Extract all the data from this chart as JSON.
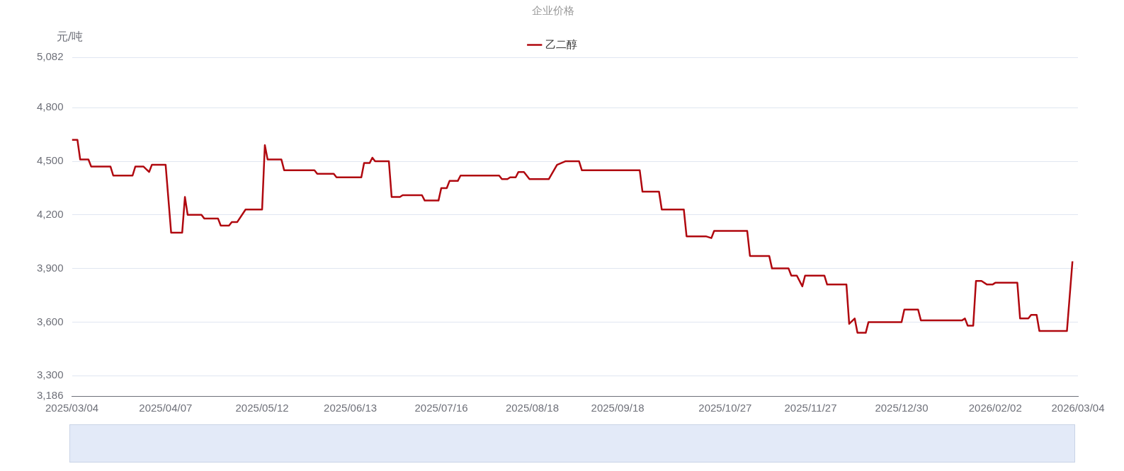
{
  "chart_data": {
    "type": "line",
    "legend_title": "企业价格",
    "ylabel": "元/吨",
    "x": [
      "2025-03-04",
      "2025-03-06",
      "2025-03-07",
      "2025-03-10",
      "2025-03-11",
      "2025-03-18",
      "2025-03-19",
      "2025-03-26",
      "2025-03-27",
      "2025-03-30",
      "2025-04-01",
      "2025-04-02",
      "2025-04-07",
      "2025-04-09",
      "2025-04-13",
      "2025-04-14",
      "2025-04-15",
      "2025-04-20",
      "2025-04-21",
      "2025-04-26",
      "2025-04-27",
      "2025-04-30",
      "2025-05-01",
      "2025-05-03",
      "2025-05-06",
      "2025-05-12",
      "2025-05-13",
      "2025-05-14",
      "2025-05-19",
      "2025-05-20",
      "2025-05-31",
      "2025-06-01",
      "2025-06-07",
      "2025-06-08",
      "2025-06-17",
      "2025-06-18",
      "2025-06-20",
      "2025-06-21",
      "2025-06-22",
      "2025-06-27",
      "2025-06-28",
      "2025-07-01",
      "2025-07-02",
      "2025-07-09",
      "2025-07-10",
      "2025-07-15",
      "2025-07-16",
      "2025-07-18",
      "2025-07-19",
      "2025-07-22",
      "2025-07-23",
      "2025-08-06",
      "2025-08-07",
      "2025-08-09",
      "2025-08-10",
      "2025-08-12",
      "2025-08-13",
      "2025-08-15",
      "2025-08-17",
      "2025-08-24",
      "2025-08-27",
      "2025-08-30",
      "2025-09-04",
      "2025-09-05",
      "2025-09-26",
      "2025-09-27",
      "2025-10-03",
      "2025-10-04",
      "2025-10-12",
      "2025-10-13",
      "2025-10-20",
      "2025-10-22",
      "2025-10-23",
      "2025-11-04",
      "2025-11-05",
      "2025-11-12",
      "2025-11-13",
      "2025-11-19",
      "2025-11-20",
      "2025-11-22",
      "2025-11-24",
      "2025-11-25",
      "2025-12-02",
      "2025-12-03",
      "2025-12-10",
      "2025-12-11",
      "2025-12-13",
      "2025-12-14",
      "2025-12-17",
      "2025-12-18",
      "2025-12-30",
      "2025-12-31",
      "2026-01-05",
      "2026-01-06",
      "2026-01-21",
      "2026-01-22",
      "2026-01-23",
      "2026-01-25",
      "2026-01-26",
      "2026-01-28",
      "2026-01-30",
      "2026-02-01",
      "2026-02-02",
      "2026-02-10",
      "2026-02-11",
      "2026-02-14",
      "2026-02-15",
      "2026-02-17",
      "2026-02-18",
      "2026-02-28",
      "2026-03-02"
    ],
    "series": [
      {
        "name": "乙二醇",
        "color": "#b0080f",
        "values": [
          4620,
          4620,
          4510,
          4510,
          4470,
          4470,
          4420,
          4420,
          4470,
          4470,
          4440,
          4480,
          4480,
          4100,
          4100,
          4300,
          4200,
          4200,
          4180,
          4180,
          4140,
          4140,
          4160,
          4160,
          4230,
          4230,
          4590,
          4510,
          4510,
          4450,
          4450,
          4430,
          4430,
          4410,
          4410,
          4490,
          4490,
          4520,
          4500,
          4500,
          4300,
          4300,
          4310,
          4310,
          4280,
          4280,
          4350,
          4350,
          4390,
          4390,
          4420,
          4420,
          4400,
          4400,
          4410,
          4410,
          4440,
          4440,
          4400,
          4400,
          4480,
          4500,
          4500,
          4450,
          4450,
          4330,
          4330,
          4230,
          4230,
          4080,
          4080,
          4070,
          4110,
          4110,
          3970,
          3970,
          3900,
          3900,
          3860,
          3860,
          3800,
          3860,
          3860,
          3810,
          3810,
          3590,
          3620,
          3540,
          3540,
          3600,
          3600,
          3670,
          3670,
          3610,
          3610,
          3620,
          3580,
          3580,
          3830,
          3830,
          3810,
          3810,
          3820,
          3820,
          3620,
          3620,
          3640,
          3640,
          3550,
          3550,
          3940
        ]
      }
    ],
    "xlim": [
      "2025-03-04",
      "2026-03-04"
    ],
    "xticks": [
      {
        "value": "2025-03-04",
        "label": "2025/03/04"
      },
      {
        "value": "2025-04-07",
        "label": "2025/04/07"
      },
      {
        "value": "2025-05-12",
        "label": "2025/05/12"
      },
      {
        "value": "2025-06-13",
        "label": "2025/06/13"
      },
      {
        "value": "2025-07-16",
        "label": "2025/07/16"
      },
      {
        "value": "2025-08-18",
        "label": "2025/08/18"
      },
      {
        "value": "2025-09-18",
        "label": "2025/09/18"
      },
      {
        "value": "2025-10-27",
        "label": "2025/10/27"
      },
      {
        "value": "2025-11-27",
        "label": "2025/11/27"
      },
      {
        "value": "2025-12-30",
        "label": "2025/12/30"
      },
      {
        "value": "2026-02-02",
        "label": "2026/02/02"
      },
      {
        "value": "2026-03-04",
        "label": "2026/03/04"
      }
    ],
    "ylim": [
      3186,
      5082
    ],
    "yticks": [
      {
        "value": 3186,
        "label": "3,186"
      },
      {
        "value": 3300,
        "label": "3,300"
      },
      {
        "value": 3600,
        "label": "3,600"
      },
      {
        "value": 3900,
        "label": "3,900"
      },
      {
        "value": 4200,
        "label": "4,200"
      },
      {
        "value": 4500,
        "label": "4,500"
      },
      {
        "value": 4800,
        "label": "4,800"
      },
      {
        "value": 5082,
        "label": "5,082"
      }
    ],
    "grid": "y",
    "legend": "top",
    "marker": "none",
    "line_style": "solid"
  }
}
